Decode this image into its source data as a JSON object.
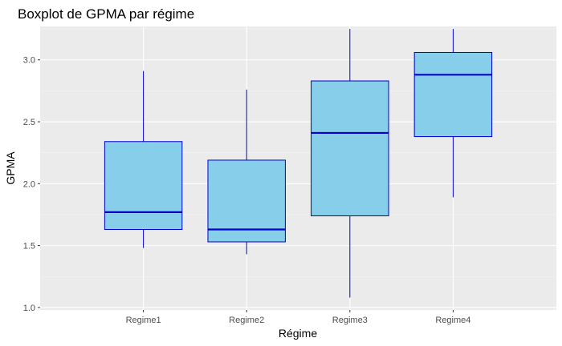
{
  "chart_data": {
    "type": "boxplot",
    "title": "Boxplot de GPMA par régime",
    "xlabel": "Régime",
    "ylabel": "GPMA",
    "ylim": [
      0.98,
      3.27
    ],
    "yticks": [
      1.0,
      1.5,
      2.0,
      2.5,
      3.0
    ],
    "ytick_labels": [
      "1.0",
      "1.5",
      "2.0",
      "2.5",
      "3.0"
    ],
    "grid": true,
    "legend": "none",
    "categories": [
      "Regime1",
      "Regime2",
      "Regime3",
      "Regime4"
    ],
    "boxes": [
      {
        "category": "Regime1",
        "whisker_low": 1.48,
        "q1": 1.63,
        "median": 1.77,
        "q3": 2.34,
        "whisker_high": 2.91
      },
      {
        "category": "Regime2",
        "whisker_low": 1.43,
        "q1": 1.53,
        "median": 1.63,
        "q3": 2.19,
        "whisker_high": 2.76
      },
      {
        "category": "Regime3",
        "whisker_low": 1.08,
        "q1": 1.74,
        "median": 2.41,
        "q3": 2.83,
        "whisker_high": 3.25
      },
      {
        "category": "Regime4",
        "whisker_low": 1.89,
        "q1": 2.38,
        "median": 2.88,
        "q3": 3.06,
        "whisker_high": 3.25
      }
    ],
    "colors": {
      "panel": "#ebebeb",
      "grid_major": "#ffffff",
      "grid_minor": "#f5f5f5",
      "box_fill": "#87ceeb",
      "box_stroke": "#0000cd",
      "median": "#0000cd"
    }
  }
}
